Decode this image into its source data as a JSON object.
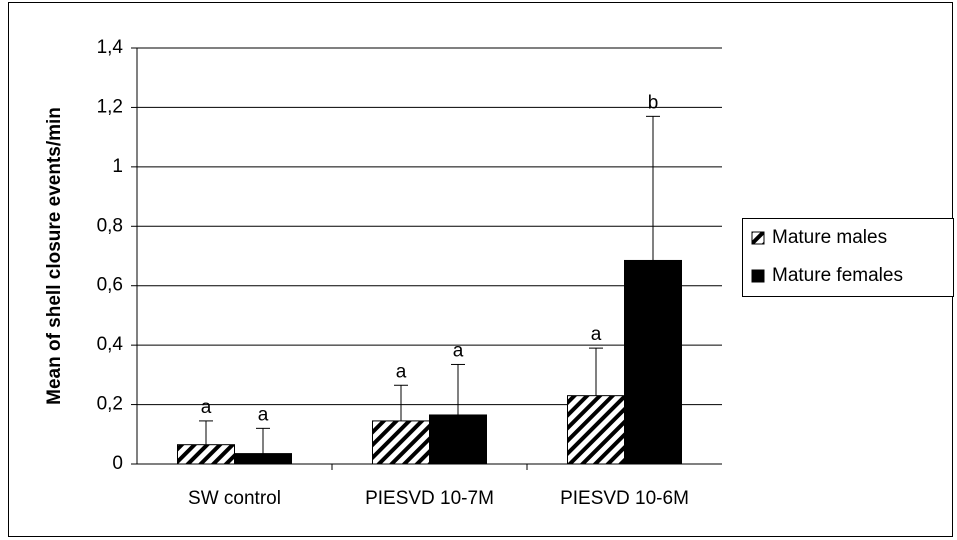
{
  "chart_data": {
    "type": "bar",
    "y_label": "Mean of shell closure events/min",
    "categories": [
      "SW control",
      "PIESVD 10-7M",
      "PIESVD 10-6M"
    ],
    "series": [
      {
        "name": "Mature males",
        "color": "#000000",
        "pattern": "diagonal-hatch",
        "values": [
          0.065,
          0.145,
          0.23
        ],
        "errors": [
          0.08,
          0.12,
          0.16
        ],
        "letters": [
          "a",
          "a",
          "a"
        ]
      },
      {
        "name": "Mature females",
        "color": "#000000",
        "values": [
          0.035,
          0.165,
          0.685
        ],
        "errors": [
          0.085,
          0.17,
          0.485
        ],
        "letters": [
          "a",
          "a",
          "b"
        ]
      }
    ],
    "ylim": [
      0,
      1.4
    ],
    "yticks": [
      0,
      {
        "value": 0.2,
        "label": "0,2"
      },
      {
        "value": 0.4,
        "label": "0,4"
      },
      {
        "value": 0.6,
        "label": "0,6"
      },
      {
        "value": 0.8,
        "label": "0,8"
      },
      1,
      {
        "value": 1.2,
        "label": "1,2"
      },
      {
        "value": 1.4,
        "label": "1,4"
      }
    ],
    "grid": true,
    "legend": "right"
  }
}
